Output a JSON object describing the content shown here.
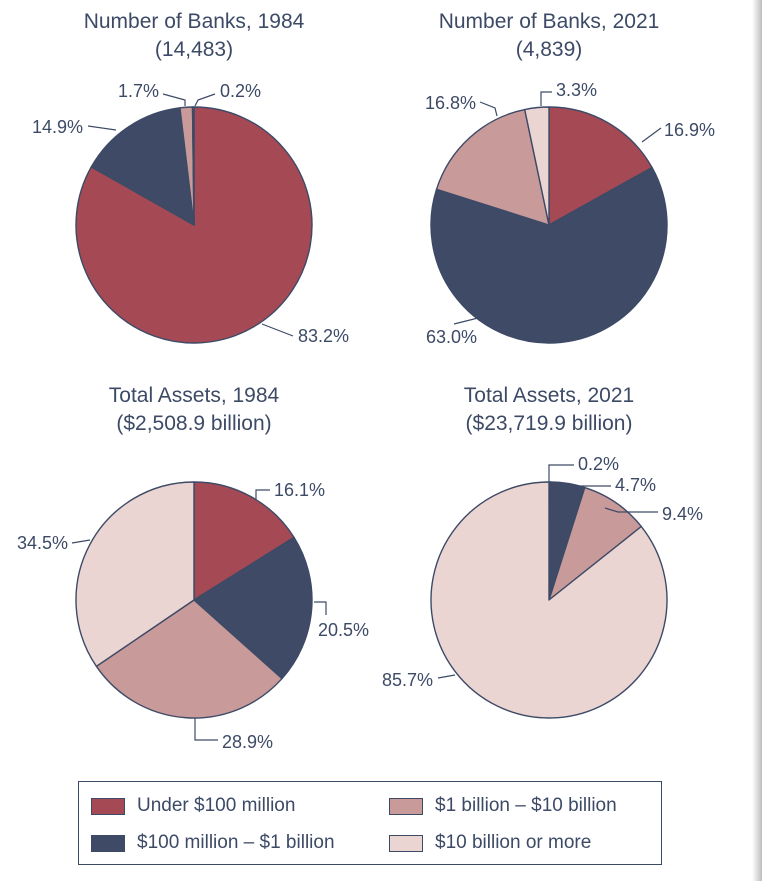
{
  "colors": {
    "under_100m": "#a54a55",
    "m100_to_1b": "#3f4a66",
    "b1_to_10b": "#c99a9a",
    "over_10b": "#ebd5d3",
    "outline": "#3d4a66",
    "text": "#3d4a66"
  },
  "legend": {
    "items": [
      {
        "key": "under_100m",
        "label": "Under $100 million"
      },
      {
        "key": "b1_to_10b",
        "label": "$1 billion – $10 billion"
      },
      {
        "key": "m100_to_1b",
        "label": "$100 million – $1 billion"
      },
      {
        "key": "over_10b",
        "label": "$10 billion or more"
      }
    ]
  },
  "chart_data": [
    {
      "type": "pie",
      "title": "Number of Banks, 1984",
      "subtitle": "(14,483)",
      "slices": [
        {
          "category": "Under $100 million",
          "key": "under_100m",
          "value": 83.2,
          "label": "83.2%"
        },
        {
          "category": "$100 million – $1 billion",
          "key": "m100_to_1b",
          "value": 14.9,
          "label": "14.9%"
        },
        {
          "category": "$1 billion – $10 billion",
          "key": "b1_to_10b",
          "value": 1.7,
          "label": "1.7%"
        },
        {
          "category": "$10 billion or more",
          "key": "over_10b",
          "value": 0.2,
          "label": "0.2%"
        }
      ]
    },
    {
      "type": "pie",
      "title": "Number of Banks, 2021",
      "subtitle": "(4,839)",
      "slices": [
        {
          "category": "Under $100 million",
          "key": "under_100m",
          "value": 16.9,
          "label": "16.9%"
        },
        {
          "category": "$100 million – $1 billion",
          "key": "m100_to_1b",
          "value": 63.0,
          "label": "63.0%"
        },
        {
          "category": "$1 billion – $10 billion",
          "key": "b1_to_10b",
          "value": 16.8,
          "label": "16.8%"
        },
        {
          "category": "$10 billion or more",
          "key": "over_10b",
          "value": 3.3,
          "label": "3.3%"
        }
      ]
    },
    {
      "type": "pie",
      "title": "Total Assets, 1984",
      "subtitle": "($2,508.9 billion)",
      "slices": [
        {
          "category": "Under $100 million",
          "key": "under_100m",
          "value": 16.1,
          "label": "16.1%"
        },
        {
          "category": "$100 million – $1 billion",
          "key": "m100_to_1b",
          "value": 20.5,
          "label": "20.5%"
        },
        {
          "category": "$1 billion – $10 billion",
          "key": "b1_to_10b",
          "value": 28.9,
          "label": "28.9%"
        },
        {
          "category": "$10 billion or more",
          "key": "over_10b",
          "value": 34.5,
          "label": "34.5%"
        }
      ]
    },
    {
      "type": "pie",
      "title": "Total Assets, 2021",
      "subtitle": "($23,719.9 billion)",
      "slices": [
        {
          "category": "Under $100 million",
          "key": "under_100m",
          "value": 0.2,
          "label": "0.2%"
        },
        {
          "category": "$100 million – $1 billion",
          "key": "m100_to_1b",
          "value": 4.7,
          "label": "4.7%"
        },
        {
          "category": "$1 billion – $10 billion",
          "key": "b1_to_10b",
          "value": 9.4,
          "label": "9.4%"
        },
        {
          "category": "$10 billion or more",
          "key": "over_10b",
          "value": 85.7,
          "label": "85.7%"
        }
      ]
    }
  ]
}
